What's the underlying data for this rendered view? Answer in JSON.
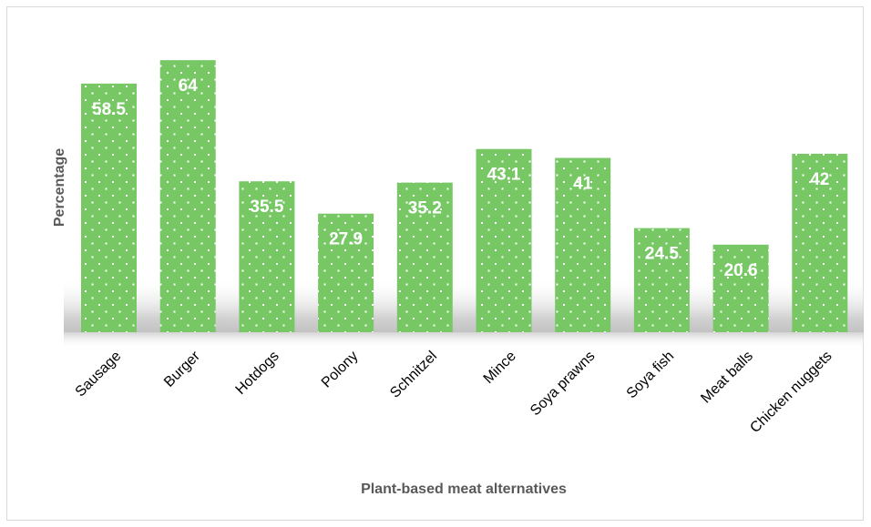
{
  "chart_data": {
    "type": "bar",
    "title": "",
    "xlabel": "Plant-based meat alternatives",
    "ylabel": "Percentage",
    "ylim": [
      0,
      70
    ],
    "grid": false,
    "legend": "none",
    "bar_color": "#77c865",
    "bar_pattern": "white-dotted",
    "categories": [
      "Sausage",
      "Burger",
      "Hotdogs",
      "Polony",
      "Schnitzel",
      "Mince",
      "Soya prawns",
      "Soya fish",
      "Meat balls",
      "Chicken nuggets"
    ],
    "values": [
      58.5,
      64,
      35.5,
      27.9,
      35.2,
      43.1,
      41,
      24.5,
      20.6,
      42
    ],
    "value_labels": [
      "58.5",
      "64",
      "35.5",
      "27.9",
      "35.2",
      "43.1",
      "41",
      "24.5",
      "20.6",
      "42"
    ]
  }
}
